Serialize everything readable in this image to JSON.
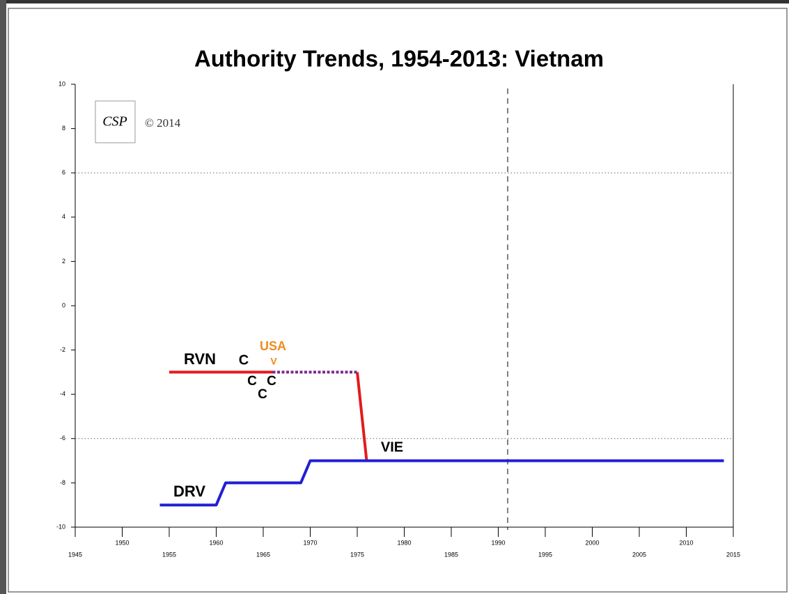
{
  "chart_data": {
    "type": "line",
    "title": "Authority Trends, 1954-2013: Vietnam",
    "logo": "CSP",
    "copyright": "© 2014",
    "xlim": [
      1945,
      2015
    ],
    "xticks": [
      1945,
      1950,
      1955,
      1960,
      1965,
      1970,
      1975,
      1980,
      1985,
      1990,
      1995,
      2000,
      2005,
      2010,
      2015
    ],
    "ylim": [
      -10,
      10
    ],
    "yticks": [
      -10,
      -8,
      -6,
      -4,
      -2,
      0,
      2,
      4,
      6,
      8,
      10
    ],
    "reference_y": [
      6,
      -6
    ],
    "reference_x": [
      1991
    ],
    "series": [
      {
        "color": "#e31a1c",
        "x": [
          1955,
          1966,
          null,
          1975,
          1976
        ],
        "values": [
          -3,
          -3,
          null,
          -3,
          -7
        ]
      },
      {
        "color": "#7b2a8c",
        "dashed": true,
        "x": [
          1966,
          1975
        ],
        "values": [
          -3,
          -3
        ]
      },
      {
        "color": "#1f1fd6",
        "x": [
          1954,
          1960,
          1961,
          1969,
          1970,
          2014
        ],
        "values": [
          -9,
          -9,
          -8,
          -8,
          -7,
          -7
        ]
      }
    ],
    "annotations": [
      {
        "text": "RVN",
        "color": "#000000"
      },
      {
        "text": "C",
        "color": "#000000"
      },
      {
        "text": "USA",
        "color": "#f08a1c"
      },
      {
        "text": "V",
        "color": "#f08a1c"
      },
      {
        "text": "C",
        "color": "#000000"
      },
      {
        "text": "C",
        "color": "#000000"
      },
      {
        "text": "C",
        "color": "#000000"
      },
      {
        "text": "VIE",
        "color": "#000000"
      },
      {
        "text": "DRV",
        "color": "#000000"
      }
    ]
  }
}
